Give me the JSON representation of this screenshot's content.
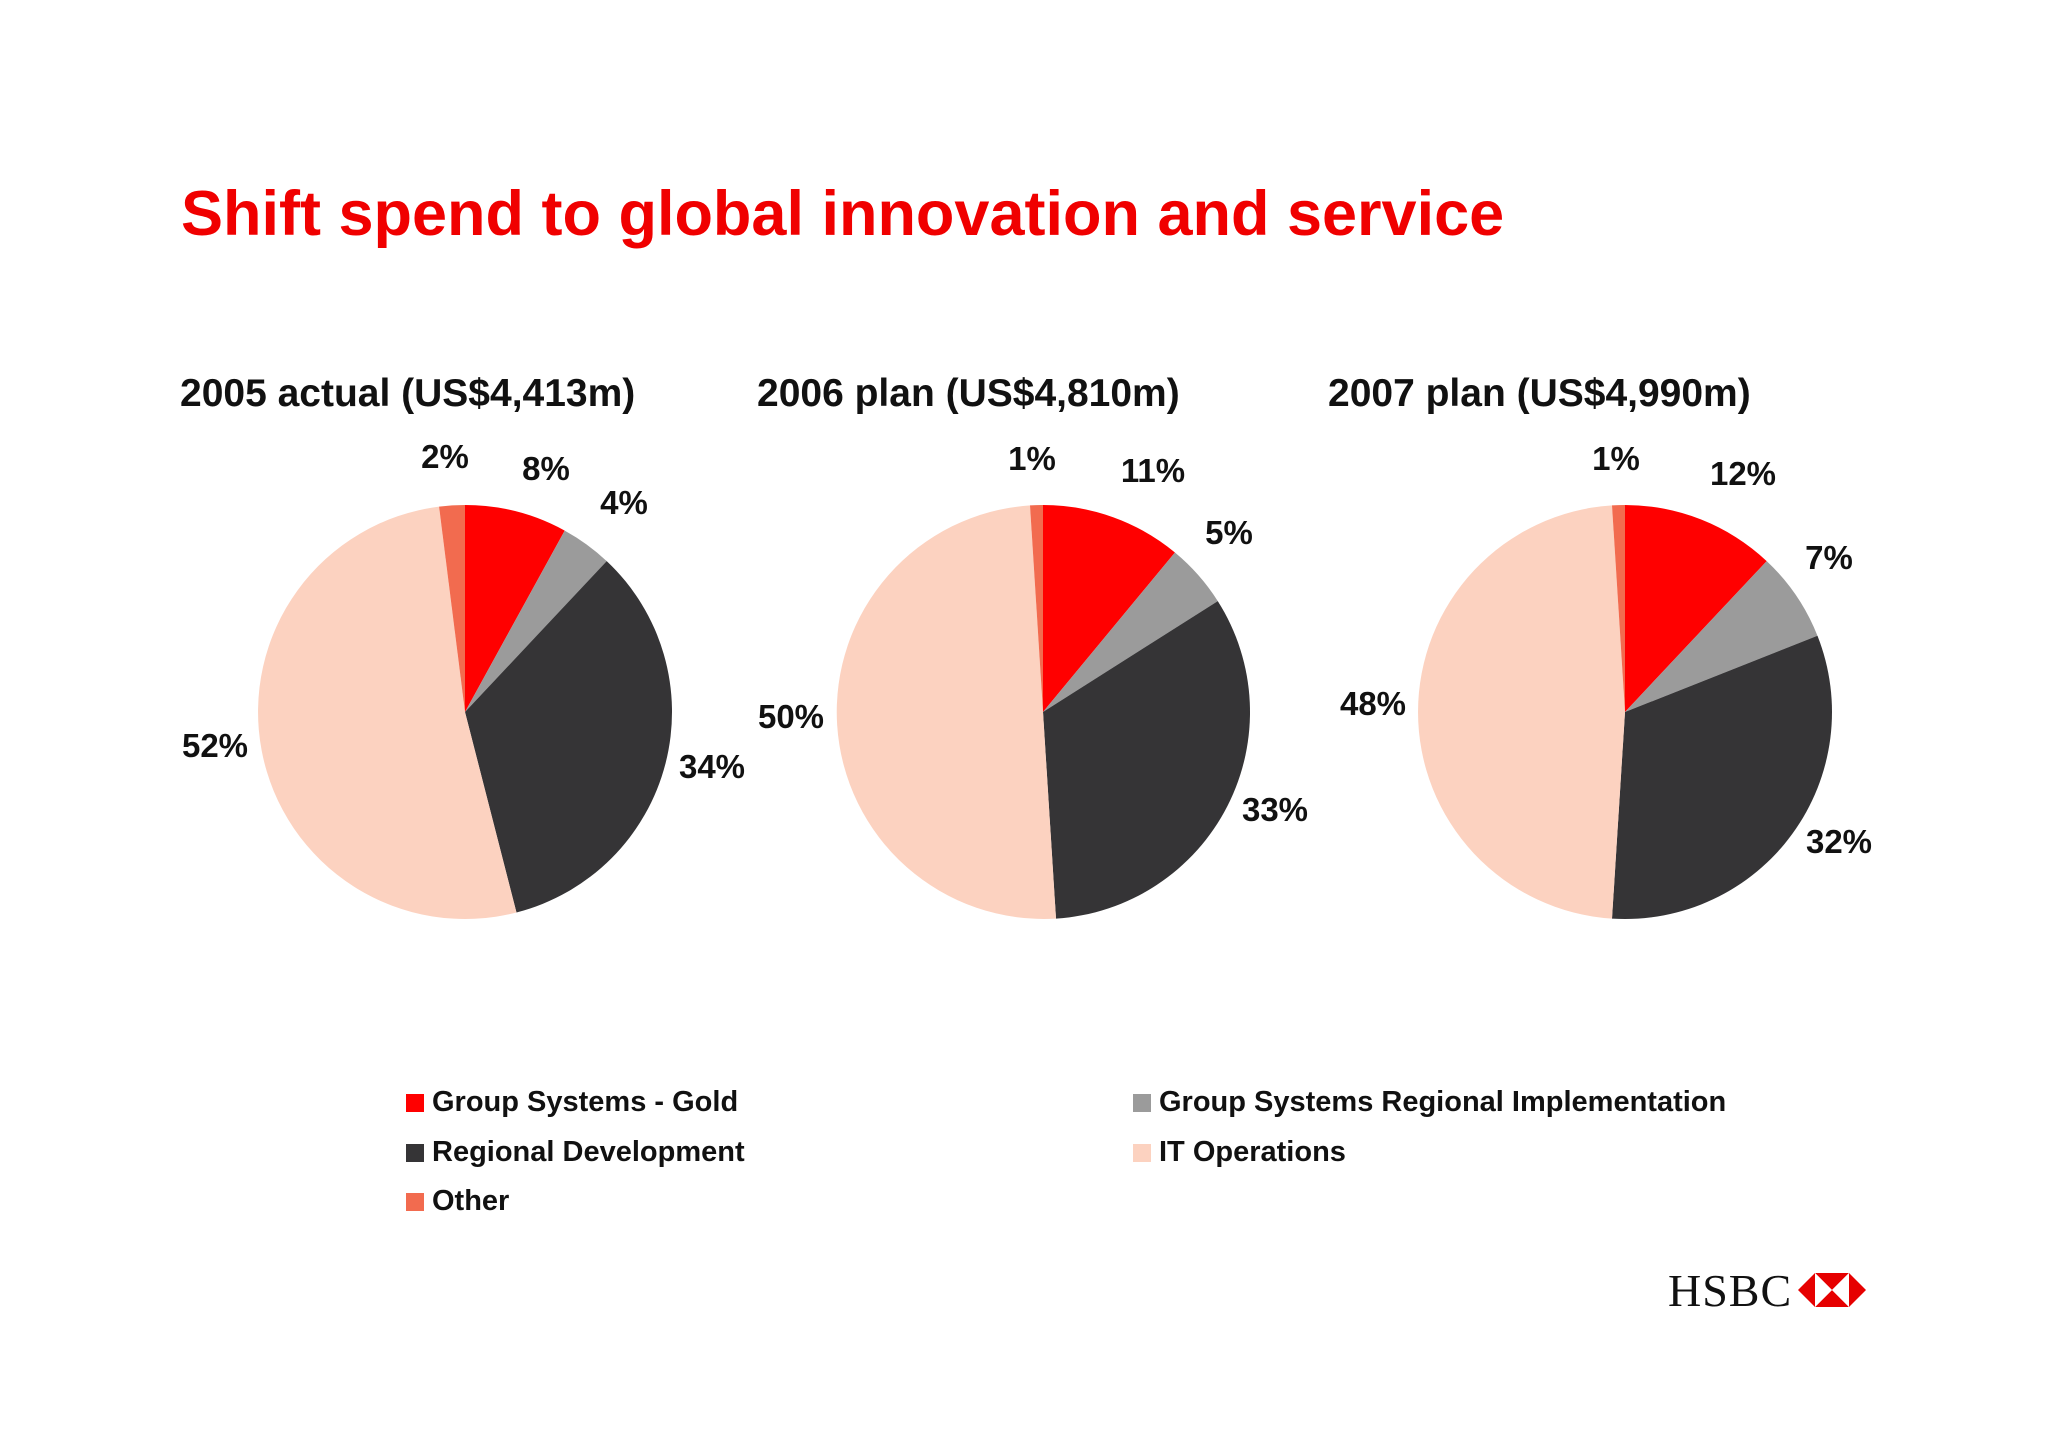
{
  "slide": {
    "title": "Shift spend to global innovation and service",
    "logo_text": "HSBC"
  },
  "colors": {
    "title": "#f00000",
    "group_systems_gold": "#ff0000",
    "group_systems_regional": "#9b9b9b",
    "regional_development": "#353436",
    "it_operations": "#fcd2c0",
    "other": "#f26b4f"
  },
  "legend": [
    {
      "label": "Group Systems - Gold",
      "color": "#ff0000"
    },
    {
      "label": "Regional Development",
      "color": "#353436"
    },
    {
      "label": "Other",
      "color": "#f26b4f"
    },
    {
      "label": "Group Systems Regional Implementation",
      "color": "#9b9b9b"
    },
    {
      "label": "IT Operations",
      "color": "#fcd2c0"
    }
  ],
  "chart_data": [
    {
      "type": "pie",
      "title": "2005 actual (US$4,413m)",
      "categories": [
        "Group Systems - Gold",
        "Group Systems Regional Implementation",
        "Regional Development",
        "IT Operations",
        "Other"
      ],
      "values": [
        8,
        4,
        34,
        52,
        2
      ],
      "labels": [
        "8%",
        "4%",
        "34%",
        "52%",
        "2%"
      ],
      "legend": "bottom"
    },
    {
      "type": "pie",
      "title": "2006 plan (US$4,810m)",
      "categories": [
        "Group Systems - Gold",
        "Group Systems Regional Implementation",
        "Regional Development",
        "IT Operations",
        "Other"
      ],
      "values": [
        11,
        5,
        33,
        50,
        1
      ],
      "labels": [
        "11%",
        "5%",
        "33%",
        "50%",
        "1%"
      ],
      "legend": "bottom"
    },
    {
      "type": "pie",
      "title": "2007 plan (US$4,990m)",
      "categories": [
        "Group Systems - Gold",
        "Group Systems Regional Implementation",
        "Regional Development",
        "IT Operations",
        "Other"
      ],
      "values": [
        12,
        7,
        32,
        48,
        1
      ],
      "labels": [
        "12%",
        "7%",
        "32%",
        "48%",
        "1%"
      ],
      "legend": "bottom"
    }
  ]
}
